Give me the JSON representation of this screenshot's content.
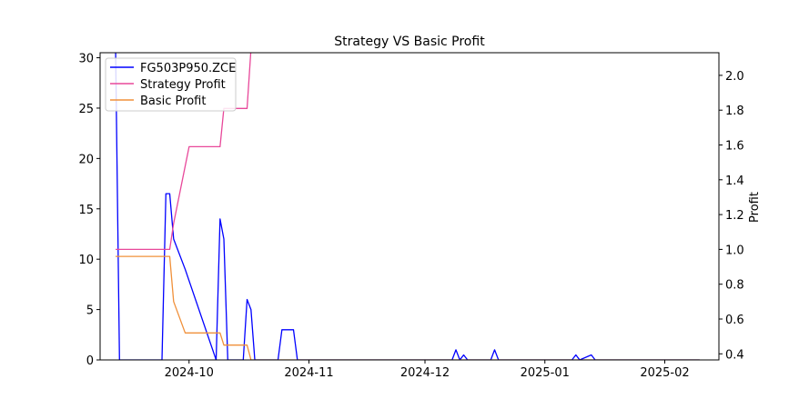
{
  "chart_data": {
    "type": "line",
    "title": "Strategy VS Basic Profit",
    "xlabel": "",
    "ylabel_left": "",
    "ylabel_right": "Profit",
    "x_tick_labels": [
      "2024-10",
      "2024-11",
      "2024-12",
      "2025-01",
      "2025-02"
    ],
    "x_ticks": [
      "2024-10-01",
      "2024-11-01",
      "2024-12-01",
      "2025-01-01",
      "2025-02-01"
    ],
    "xlim": [
      "2024-09-08",
      "2025-02-15"
    ],
    "ylim_left": [
      0,
      30.5
    ],
    "ylim_right": [
      0.365,
      2.13
    ],
    "y_left_ticks": [
      0,
      5,
      10,
      15,
      20,
      25,
      30
    ],
    "y_right_ticks": [
      0.4,
      0.6,
      0.8,
      1.0,
      1.2,
      1.4,
      1.6,
      1.8,
      2.0
    ],
    "legend_position": "upper left",
    "grid": false,
    "series": [
      {
        "name": "FG503P950.ZCE",
        "axis": "left",
        "color": "#0000ff",
        "points": [
          [
            "2024-09-12",
            31
          ],
          [
            "2024-09-13",
            0
          ],
          [
            "2024-09-24",
            0
          ],
          [
            "2024-09-25",
            16.5
          ],
          [
            "2024-09-26",
            16.5
          ],
          [
            "2024-09-27",
            12
          ],
          [
            "2024-09-30",
            9
          ],
          [
            "2024-10-08",
            0
          ],
          [
            "2024-10-09",
            14
          ],
          [
            "2024-10-10",
            12
          ],
          [
            "2024-10-11",
            0
          ],
          [
            "2024-10-15",
            0
          ],
          [
            "2024-10-16",
            6
          ],
          [
            "2024-10-17",
            5
          ],
          [
            "2024-10-18",
            0
          ],
          [
            "2024-10-24",
            0
          ],
          [
            "2024-10-25",
            3
          ],
          [
            "2024-10-28",
            3
          ],
          [
            "2024-10-29",
            0
          ],
          [
            "2024-12-08",
            0
          ],
          [
            "2024-12-09",
            1
          ],
          [
            "2024-12-10",
            0
          ],
          [
            "2024-12-11",
            0.5
          ],
          [
            "2024-12-12",
            0
          ],
          [
            "2024-12-18",
            0
          ],
          [
            "2024-12-19",
            1
          ],
          [
            "2024-12-20",
            0
          ],
          [
            "2025-01-08",
            0
          ],
          [
            "2025-01-09",
            0.5
          ],
          [
            "2025-01-10",
            0
          ],
          [
            "2025-01-13",
            0.5
          ],
          [
            "2025-01-14",
            0
          ],
          [
            "2025-02-10",
            0
          ]
        ]
      },
      {
        "name": "Strategy Profit",
        "axis": "right",
        "color": "#e8489a",
        "points": [
          [
            "2024-09-12",
            1.0
          ],
          [
            "2024-09-26",
            1.0
          ],
          [
            "2024-09-27",
            1.15
          ],
          [
            "2024-10-01",
            1.59
          ],
          [
            "2024-10-09",
            1.59
          ],
          [
            "2024-10-10",
            1.81
          ],
          [
            "2024-10-16",
            1.81
          ],
          [
            "2024-10-17",
            2.15
          ]
        ]
      },
      {
        "name": "Basic Profit",
        "axis": "right",
        "color": "#f0903a",
        "points": [
          [
            "2024-09-12",
            0.96
          ],
          [
            "2024-09-26",
            0.96
          ],
          [
            "2024-09-27",
            0.7
          ],
          [
            "2024-09-30",
            0.52
          ],
          [
            "2024-10-09",
            0.52
          ],
          [
            "2024-10-10",
            0.45
          ],
          [
            "2024-10-16",
            0.45
          ],
          [
            "2024-10-17",
            0.365
          ],
          [
            "2025-02-10",
            0.365
          ]
        ]
      }
    ]
  }
}
